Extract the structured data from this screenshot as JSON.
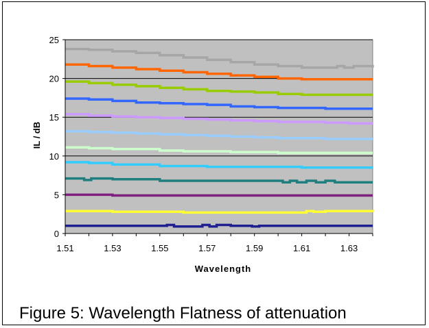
{
  "caption": "Figure 5: Wavelength Flatness of attenuation",
  "chart_data": {
    "type": "line",
    "xlabel": "Wavelength",
    "ylabel": "IL / dB",
    "xlim": [
      1.51,
      1.64
    ],
    "ylim": [
      0,
      25
    ],
    "x_ticks": [
      "1.51",
      "1.53",
      "1.55",
      "1.57",
      "1.59",
      "1.61",
      "1.63"
    ],
    "x_tick_values": [
      1.51,
      1.53,
      1.55,
      1.57,
      1.59,
      1.61,
      1.63
    ],
    "y_ticks": [
      "0",
      "5",
      "10",
      "15",
      "20",
      "25"
    ],
    "y_tick_values": [
      0,
      5,
      10,
      15,
      20,
      25
    ],
    "grid": "horizontal",
    "legend": "none",
    "plot_background": "#c0c0c0",
    "series": [
      {
        "color": "#1f1f8f",
        "x": [
          1.51,
          1.52,
          1.53,
          1.54,
          1.55,
          1.553,
          1.556,
          1.56,
          1.565,
          1.568,
          1.571,
          1.574,
          1.58,
          1.585,
          1.589,
          1.592,
          1.6,
          1.61,
          1.62,
          1.63,
          1.64
        ],
        "y": [
          1.0,
          1.0,
          1.0,
          1.0,
          1.0,
          1.1,
          0.9,
          0.9,
          0.9,
          1.1,
          0.9,
          1.1,
          1.0,
          1.0,
          0.9,
          1.0,
          1.0,
          1.0,
          1.0,
          1.0,
          1.0
        ]
      },
      {
        "color": "#ffff33",
        "x": [
          1.51,
          1.52,
          1.53,
          1.54,
          1.55,
          1.56,
          1.57,
          1.58,
          1.59,
          1.6,
          1.61,
          1.612,
          1.615,
          1.62,
          1.63,
          1.64
        ],
        "y": [
          2.9,
          2.9,
          2.8,
          2.8,
          2.8,
          2.7,
          2.7,
          2.7,
          2.7,
          2.7,
          2.7,
          2.9,
          2.8,
          2.9,
          2.9,
          2.8
        ]
      },
      {
        "color": "#7f1f7f",
        "x": [
          1.51,
          1.52,
          1.53,
          1.54,
          1.55,
          1.56,
          1.57,
          1.58,
          1.59,
          1.6,
          1.61,
          1.62,
          1.63,
          1.64
        ],
        "y": [
          5.0,
          5.0,
          4.9,
          4.9,
          4.9,
          4.9,
          4.9,
          4.9,
          4.9,
          4.9,
          4.9,
          4.9,
          4.9,
          4.9
        ]
      },
      {
        "color": "#1f7f7f",
        "x": [
          1.51,
          1.515,
          1.518,
          1.521,
          1.53,
          1.54,
          1.55,
          1.56,
          1.57,
          1.58,
          1.59,
          1.6,
          1.602,
          1.605,
          1.608,
          1.612,
          1.616,
          1.62,
          1.624,
          1.63,
          1.64
        ],
        "y": [
          7.1,
          7.1,
          6.9,
          7.1,
          7.0,
          7.0,
          6.8,
          6.8,
          6.8,
          6.8,
          6.8,
          6.8,
          6.6,
          6.8,
          6.6,
          6.8,
          6.6,
          6.8,
          6.6,
          6.6,
          6.6
        ]
      },
      {
        "color": "#33ccff",
        "x": [
          1.51,
          1.52,
          1.53,
          1.54,
          1.55,
          1.56,
          1.57,
          1.58,
          1.59,
          1.6,
          1.61,
          1.62,
          1.63,
          1.64
        ],
        "y": [
          9.2,
          9.1,
          8.9,
          8.9,
          8.7,
          8.7,
          8.6,
          8.6,
          8.6,
          8.6,
          8.5,
          8.5,
          8.5,
          8.5
        ]
      },
      {
        "color": "#ccffcc",
        "x": [
          1.51,
          1.52,
          1.53,
          1.54,
          1.55,
          1.56,
          1.57,
          1.58,
          1.59,
          1.6,
          1.61,
          1.62,
          1.63,
          1.64
        ],
        "y": [
          11.1,
          11.0,
          10.9,
          10.9,
          10.7,
          10.6,
          10.6,
          10.5,
          10.5,
          10.4,
          10.4,
          10.4,
          10.4,
          10.4
        ]
      },
      {
        "color": "#99ccff",
        "x": [
          1.51,
          1.52,
          1.53,
          1.54,
          1.55,
          1.56,
          1.57,
          1.58,
          1.59,
          1.6,
          1.61,
          1.62,
          1.63,
          1.64
        ],
        "y": [
          13.2,
          13.1,
          13.0,
          12.9,
          12.8,
          12.7,
          12.6,
          12.5,
          12.4,
          12.3,
          12.3,
          12.2,
          12.2,
          12.2
        ]
      },
      {
        "color": "#cc99ff",
        "x": [
          1.51,
          1.52,
          1.53,
          1.54,
          1.55,
          1.56,
          1.57,
          1.58,
          1.59,
          1.6,
          1.61,
          1.62,
          1.63,
          1.64
        ],
        "y": [
          15.4,
          15.2,
          15.1,
          15.0,
          14.9,
          14.8,
          14.7,
          14.6,
          14.5,
          14.4,
          14.4,
          14.3,
          14.2,
          14.2
        ]
      },
      {
        "color": "#3366ff",
        "x": [
          1.51,
          1.52,
          1.53,
          1.54,
          1.55,
          1.56,
          1.57,
          1.58,
          1.59,
          1.6,
          1.61,
          1.62,
          1.63,
          1.64
        ],
        "y": [
          17.4,
          17.3,
          17.1,
          16.9,
          16.8,
          16.7,
          16.6,
          16.4,
          16.3,
          16.2,
          16.2,
          16.1,
          16.1,
          16.1
        ]
      },
      {
        "color": "#99cc00",
        "x": [
          1.51,
          1.52,
          1.53,
          1.54,
          1.55,
          1.56,
          1.57,
          1.58,
          1.59,
          1.6,
          1.61,
          1.62,
          1.63,
          1.64
        ],
        "y": [
          19.6,
          19.4,
          19.2,
          19.0,
          18.8,
          18.6,
          18.4,
          18.3,
          18.2,
          18.0,
          17.9,
          17.9,
          17.9,
          17.9
        ]
      },
      {
        "color": "#ff6600",
        "x": [
          1.51,
          1.52,
          1.53,
          1.54,
          1.55,
          1.56,
          1.57,
          1.58,
          1.59,
          1.6,
          1.61,
          1.62,
          1.63,
          1.64
        ],
        "y": [
          21.8,
          21.6,
          21.4,
          21.2,
          21.0,
          20.8,
          20.6,
          20.4,
          20.2,
          20.0,
          19.9,
          19.9,
          19.9,
          19.9
        ]
      },
      {
        "color": "#a6a6a6",
        "x": [
          1.51,
          1.52,
          1.53,
          1.54,
          1.55,
          1.56,
          1.57,
          1.58,
          1.59,
          1.6,
          1.61,
          1.62,
          1.625,
          1.628,
          1.632,
          1.64
        ],
        "y": [
          23.8,
          23.7,
          23.5,
          23.3,
          23.0,
          22.7,
          22.4,
          22.1,
          21.8,
          21.6,
          21.4,
          21.4,
          21.6,
          21.4,
          21.6,
          21.4
        ]
      }
    ]
  }
}
